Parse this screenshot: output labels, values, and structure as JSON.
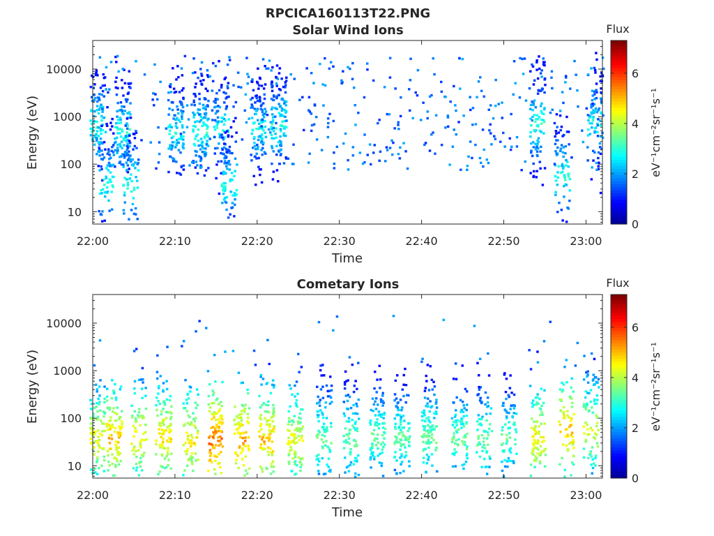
{
  "figure_title": "RPCICA160113T22.PNG",
  "colors": {
    "colormap": [
      "#00008f",
      "#0000ff",
      "#0080ff",
      "#00ffff",
      "#80ff80",
      "#ffff00",
      "#ff8000",
      "#ff0000",
      "#800000"
    ],
    "axis": "#262626",
    "background": "#ffffff"
  },
  "chart_data": [
    {
      "type": "heatmap",
      "title": "Solar Wind Ions",
      "xlabel": "Time",
      "ylabel": "Energy (eV)",
      "x_tick_labels": [
        "22:00",
        "22:10",
        "22:20",
        "22:30",
        "22:40",
        "22:50",
        "23:00"
      ],
      "x_ticks_minutes": [
        0,
        10,
        20,
        30,
        40,
        50,
        60
      ],
      "xlim_minutes": [
        0,
        62
      ],
      "y_scale": "log",
      "y_tick_labels": [
        "10",
        "100",
        "1000",
        "10000"
      ],
      "y_ticks": [
        10,
        100,
        1000,
        10000
      ],
      "ylim": [
        5.5,
        40000
      ],
      "colorbar": {
        "label": "Flux",
        "unit_label": "eV⁻¹cm⁻²sr⁻¹s⁻¹",
        "range": [
          0,
          7.3
        ],
        "tick_labels": [
          "0",
          "2",
          "4",
          "6"
        ],
        "ticks": [
          0,
          2,
          4,
          6
        ]
      },
      "grid": false,
      "bursts": [
        {
          "t": 0.5,
          "e": 700,
          "flux": 3.0
        },
        {
          "t": 1.5,
          "e": 40,
          "flux": 3.0
        },
        {
          "t": 3.5,
          "e": 500,
          "flux": 3.0
        },
        {
          "t": 4.5,
          "e": 40,
          "flux": 3.0
        },
        {
          "t": 10.0,
          "e": 500,
          "flux": 2.8
        },
        {
          "t": 13.0,
          "e": 500,
          "flux": 3.0
        },
        {
          "t": 15.5,
          "e": 600,
          "flux": 2.8
        },
        {
          "t": 16.5,
          "e": 40,
          "flux": 3.0
        },
        {
          "t": 20.0,
          "e": 600,
          "flux": 2.8
        },
        {
          "t": 22.5,
          "e": 700,
          "flux": 3.0
        },
        {
          "t": 54.0,
          "e": 700,
          "flux": 3.0
        },
        {
          "t": 57.0,
          "e": 60,
          "flux": 3.0
        },
        {
          "t": 61.0,
          "e": 800,
          "flux": 2.8
        }
      ]
    },
    {
      "type": "heatmap",
      "title": "Cometary Ions",
      "xlabel": "Time",
      "ylabel": "Energy (eV)",
      "x_tick_labels": [
        "22:00",
        "22:10",
        "22:20",
        "22:30",
        "22:40",
        "22:50",
        "23:00"
      ],
      "x_ticks_minutes": [
        0,
        10,
        20,
        30,
        40,
        50,
        60
      ],
      "xlim_minutes": [
        0,
        62
      ],
      "y_scale": "log",
      "y_tick_labels": [
        "10",
        "100",
        "1000",
        "10000"
      ],
      "y_ticks": [
        10,
        100,
        1000,
        10000
      ],
      "ylim": [
        5.5,
        40000
      ],
      "colorbar": {
        "label": "Flux",
        "unit_label": "eV⁻¹cm⁻²sr⁻¹s⁻¹",
        "range": [
          0,
          7.3
        ],
        "tick_labels": [
          "0",
          "2",
          "4",
          "6"
        ],
        "ticks": [
          0,
          2,
          4,
          6
        ]
      },
      "grid": false,
      "bursts": [
        {
          "t": 0.5,
          "e": 40,
          "flux": 4.5
        },
        {
          "t": 2.5,
          "e": 40,
          "flux": 5.0
        },
        {
          "t": 5.5,
          "e": 40,
          "flux": 4.6
        },
        {
          "t": 8.5,
          "e": 40,
          "flux": 4.8
        },
        {
          "t": 11.8,
          "e": 35,
          "flux": 4.7
        },
        {
          "t": 14.8,
          "e": 35,
          "flux": 5.6
        },
        {
          "t": 18.0,
          "e": 35,
          "flux": 5.2
        },
        {
          "t": 21.0,
          "e": 35,
          "flux": 5.0
        },
        {
          "t": 24.5,
          "e": 35,
          "flux": 4.5
        },
        {
          "t": 28.0,
          "e": 40,
          "flux": 3.6
        },
        {
          "t": 31.3,
          "e": 40,
          "flux": 3.6
        },
        {
          "t": 34.5,
          "e": 40,
          "flux": 3.5
        },
        {
          "t": 37.5,
          "e": 40,
          "flux": 3.5
        },
        {
          "t": 40.8,
          "e": 40,
          "flux": 3.6
        },
        {
          "t": 44.5,
          "e": 40,
          "flux": 3.6
        },
        {
          "t": 47.5,
          "e": 40,
          "flux": 3.6
        },
        {
          "t": 50.5,
          "e": 40,
          "flux": 3.5
        },
        {
          "t": 54.0,
          "e": 40,
          "flux": 4.6
        },
        {
          "t": 57.5,
          "e": 60,
          "flux": 5.0
        },
        {
          "t": 60.5,
          "e": 60,
          "flux": 4.3
        }
      ]
    }
  ]
}
